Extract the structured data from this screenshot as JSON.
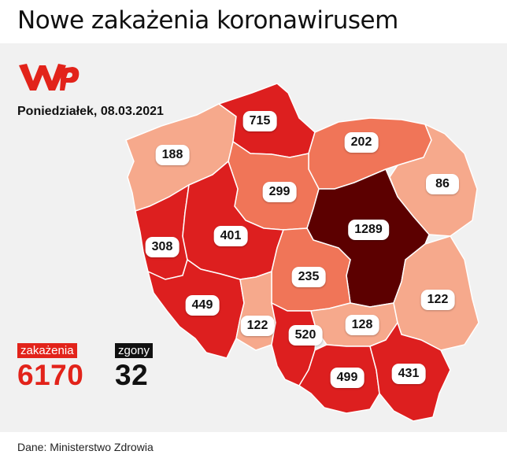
{
  "title": "Nowe zakażenia koronawirusem",
  "date": "Poniedziałek, 08.03.2021",
  "logo": {
    "name": "wp-logo",
    "color": "#e2231a"
  },
  "summary": {
    "cases_label": "zakażenia",
    "cases_value": "6170",
    "deaths_label": "zgony",
    "deaths_value": "32"
  },
  "colors": {
    "highest": "#5c0000",
    "high": "#dd1f1f",
    "medium": "#f07558",
    "low": "#f6a98c",
    "background": "#f1f1f1",
    "brand_red": "#e2231a"
  },
  "regions": [
    {
      "name": "zachodniopomorskie",
      "value": "188",
      "level": "low"
    },
    {
      "name": "pomorskie",
      "value": "715",
      "level": "high"
    },
    {
      "name": "warmińsko-mazurskie",
      "value": "202",
      "level": "medium"
    },
    {
      "name": "podlaskie",
      "value": "86",
      "level": "low"
    },
    {
      "name": "kujawsko-pomorskie",
      "value": "299",
      "level": "medium"
    },
    {
      "name": "lubuskie",
      "value": "308",
      "level": "high"
    },
    {
      "name": "wielkopolskie",
      "value": "401",
      "level": "high"
    },
    {
      "name": "mazowieckie",
      "value": "1289",
      "level": "highest"
    },
    {
      "name": "łódzkie",
      "value": "235",
      "level": "medium"
    },
    {
      "name": "dolnośląskie",
      "value": "449",
      "level": "high"
    },
    {
      "name": "lubelskie",
      "value": "122",
      "level": "low"
    },
    {
      "name": "opolskie",
      "value": "122",
      "level": "low"
    },
    {
      "name": "śląskie",
      "value": "520",
      "level": "high"
    },
    {
      "name": "świętokrzyskie",
      "value": "128",
      "level": "low"
    },
    {
      "name": "małopolskie",
      "value": "499",
      "level": "high"
    },
    {
      "name": "podkarpackie",
      "value": "431",
      "level": "high"
    }
  ],
  "source": "Dane: Ministerstwo Zdrowia"
}
